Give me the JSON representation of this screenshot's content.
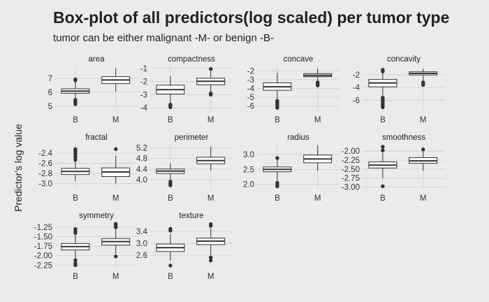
{
  "title": "Box-plot of all predictors(log scaled) per tumor type",
  "subtitle": "tumor can be either malignant -M- or benign -B-",
  "chart_data": {
    "type": "box",
    "ylabel": "Predictor's log value",
    "xlabel": "",
    "categories": [
      "B",
      "M"
    ],
    "grid": true,
    "facets": [
      {
        "name": "area",
        "ylim": [
          4.7,
          7.9
        ],
        "yticks": [
          5,
          6,
          7
        ],
        "ytick_labels": [
          "5",
          "6",
          "7"
        ],
        "boxes": [
          {
            "category": "B",
            "whisker_low": 5.55,
            "q1": 5.93,
            "median": 6.08,
            "q3": 6.25,
            "whisker_high": 6.75,
            "outliers": [
              5.45,
              5.35,
              5.25,
              5.15,
              6.85,
              6.92
            ]
          },
          {
            "category": "M",
            "whisker_low": 6.05,
            "q1": 6.62,
            "median": 6.88,
            "q3": 7.12,
            "whisker_high": 7.7,
            "outliers": []
          }
        ]
      },
      {
        "name": "compactness",
        "ylim": [
          -4.2,
          -0.8
        ],
        "yticks": [
          -4,
          -3,
          -2,
          -1
        ],
        "ytick_labels": [
          "-4",
          "-3",
          "-2",
          "-1"
        ],
        "boxes": [
          {
            "category": "B",
            "whisker_low": -3.65,
            "q1": -2.95,
            "median": -2.62,
            "q3": -2.28,
            "whisker_high": -1.6,
            "outliers": [
              -3.75,
              -3.85,
              -3.95
            ]
          },
          {
            "category": "M",
            "whisker_low": -2.8,
            "q1": -2.25,
            "median": -1.98,
            "q3": -1.75,
            "whisker_high": -1.2,
            "outliers": [
              -1.05,
              -2.9,
              -3.0
            ]
          }
        ]
      },
      {
        "name": "concave",
        "ylim": [
          -6.5,
          -1.4
        ],
        "yticks": [
          -6,
          -5,
          -4,
          -3,
          -2
        ],
        "ytick_labels": [
          "-6",
          "-5",
          "-4",
          "-3",
          "-2"
        ],
        "boxes": [
          {
            "category": "B",
            "whisker_low": -5.2,
            "q1": -4.2,
            "median": -3.8,
            "q3": -3.35,
            "whisker_high": -2.2,
            "outliers": [
              -5.4,
              -5.6,
              -5.8,
              -6.0,
              -6.2
            ]
          },
          {
            "category": "M",
            "whisker_low": -3.1,
            "q1": -2.65,
            "median": -2.5,
            "q3": -2.3,
            "whisker_high": -1.75,
            "outliers": [
              -3.3,
              -3.5,
              -3.65
            ]
          }
        ]
      },
      {
        "name": "concavity",
        "ylim": [
          -7.6,
          -0.6
        ],
        "yticks": [
          -6,
          -4,
          -2
        ],
        "ytick_labels": [
          "-6",
          "-4",
          "-2"
        ],
        "boxes": [
          {
            "category": "B",
            "whisker_low": -5.3,
            "q1": -3.9,
            "median": -3.3,
            "q3": -2.75,
            "whisker_high": -1.8,
            "outliers": [
              -5.6,
              -5.9,
              -6.2,
              -6.5,
              -6.8,
              -7.1,
              -1.5,
              -1.25
            ]
          },
          {
            "category": "M",
            "whisker_low": -3.0,
            "q1": -2.05,
            "median": -1.8,
            "q3": -1.55,
            "whisker_high": -1.1,
            "outliers": [
              -3.2,
              -3.4,
              -3.6
            ]
          }
        ]
      },
      {
        "name": "fractal",
        "ylim": [
          -3.1,
          -2.22
        ],
        "yticks": [
          -3.0,
          -2.8,
          -2.6,
          -2.4
        ],
        "ytick_labels": [
          "-3.0",
          "-2.8",
          "-2.6",
          "-2.4"
        ],
        "boxes": [
          {
            "category": "B",
            "whisker_low": -2.95,
            "q1": -2.82,
            "median": -2.76,
            "q3": -2.7,
            "whisker_high": -2.56,
            "outliers": [
              -2.53,
              -2.48,
              -2.44,
              -2.4,
              -2.36,
              -2.32
            ]
          },
          {
            "category": "M",
            "whisker_low": -3.0,
            "q1": -2.86,
            "median": -2.77,
            "q3": -2.69,
            "whisker_high": -2.45,
            "outliers": [
              -2.32
            ]
          }
        ]
      },
      {
        "name": "perimeter",
        "ylim": [
          3.65,
          5.35
        ],
        "yticks": [
          4.0,
          4.4,
          4.8,
          5.2
        ],
        "ytick_labels": [
          "4.0",
          "4.4",
          "4.8",
          "5.2"
        ],
        "boxes": [
          {
            "category": "B",
            "whisker_low": 3.98,
            "q1": 4.23,
            "median": 4.32,
            "q3": 4.4,
            "whisker_high": 4.62,
            "outliers": [
              3.92,
              3.87,
              3.83,
              3.78
            ]
          },
          {
            "category": "M",
            "whisker_low": 4.35,
            "q1": 4.6,
            "median": 4.72,
            "q3": 4.85,
            "whisker_high": 5.25,
            "outliers": []
          }
        ]
      },
      {
        "name": "radius",
        "ylim": [
          1.85,
          3.35
        ],
        "yticks": [
          2.0,
          2.5,
          3.0
        ],
        "ytick_labels": [
          "2.0",
          "2.5",
          "3.0"
        ],
        "boxes": [
          {
            "category": "B",
            "whisker_low": 2.12,
            "q1": 2.42,
            "median": 2.5,
            "q3": 2.58,
            "whisker_high": 2.85,
            "outliers": [
              2.05,
              1.98,
              1.93,
              2.88
            ]
          },
          {
            "category": "M",
            "whisker_low": 2.45,
            "q1": 2.72,
            "median": 2.85,
            "q3": 2.98,
            "whisker_high": 3.3,
            "outliers": []
          }
        ]
      },
      {
        "name": "smoothness",
        "ylim": [
          -3.05,
          -1.8
        ],
        "yticks": [
          -3.0,
          -2.75,
          -2.5,
          -2.25,
          -2.0
        ],
        "ytick_labels": [
          "-3.00",
          "-2.75",
          "-2.50",
          "-2.25",
          "-2.00"
        ],
        "boxes": [
          {
            "category": "B",
            "whisker_low": -2.75,
            "q1": -2.47,
            "median": -2.39,
            "q3": -2.3,
            "whisker_high": -2.05,
            "outliers": [
              -2.98,
              -1.98,
              -1.88
            ]
          },
          {
            "category": "M",
            "whisker_low": -2.55,
            "q1": -2.34,
            "median": -2.27,
            "q3": -2.18,
            "whisker_high": -2.0,
            "outliers": [
              -1.95
            ]
          }
        ]
      },
      {
        "name": "symmetry",
        "ylim": [
          -2.3,
          -1.12
        ],
        "yticks": [
          -2.25,
          -2.0,
          -1.75,
          -1.5,
          -1.25
        ],
        "ytick_labels": [
          "-2.25",
          "-2.00",
          "-1.75",
          "-1.50",
          "-1.25"
        ],
        "boxes": [
          {
            "category": "B",
            "whisker_low": -2.08,
            "q1": -1.85,
            "median": -1.76,
            "q3": -1.68,
            "whisker_high": -1.45,
            "outliers": [
              -2.12,
              -2.2,
              -2.25,
              -1.4,
              -1.35,
              -1.3
            ]
          },
          {
            "category": "M",
            "whisker_low": -1.95,
            "q1": -1.72,
            "median": -1.63,
            "q3": -1.55,
            "whisker_high": -1.3,
            "outliers": [
              -2.02,
              -1.25,
              -1.2,
              -1.16
            ]
          }
        ]
      },
      {
        "name": "texture",
        "ylim": [
          2.2,
          3.7
        ],
        "yticks": [
          2.6,
          3.0,
          3.4
        ],
        "ytick_labels": [
          "2.6",
          "3.0",
          "3.4"
        ],
        "boxes": [
          {
            "category": "B",
            "whisker_low": 2.42,
            "q1": 2.72,
            "median": 2.85,
            "q3": 2.97,
            "whisker_high": 3.3,
            "outliers": [
              2.25,
              3.42,
              3.48
            ]
          },
          {
            "category": "M",
            "whisker_low": 2.6,
            "q1": 2.95,
            "median": 3.07,
            "q3": 3.17,
            "whisker_high": 3.5,
            "outliers": [
              2.52,
              2.42,
              3.58,
              3.64
            ]
          }
        ]
      }
    ]
  },
  "colors": {
    "background": "#ebebeb",
    "gridline": "#d2d2d2",
    "box_fill": "#ffffff",
    "line": "#333333",
    "text": "#222222"
  }
}
